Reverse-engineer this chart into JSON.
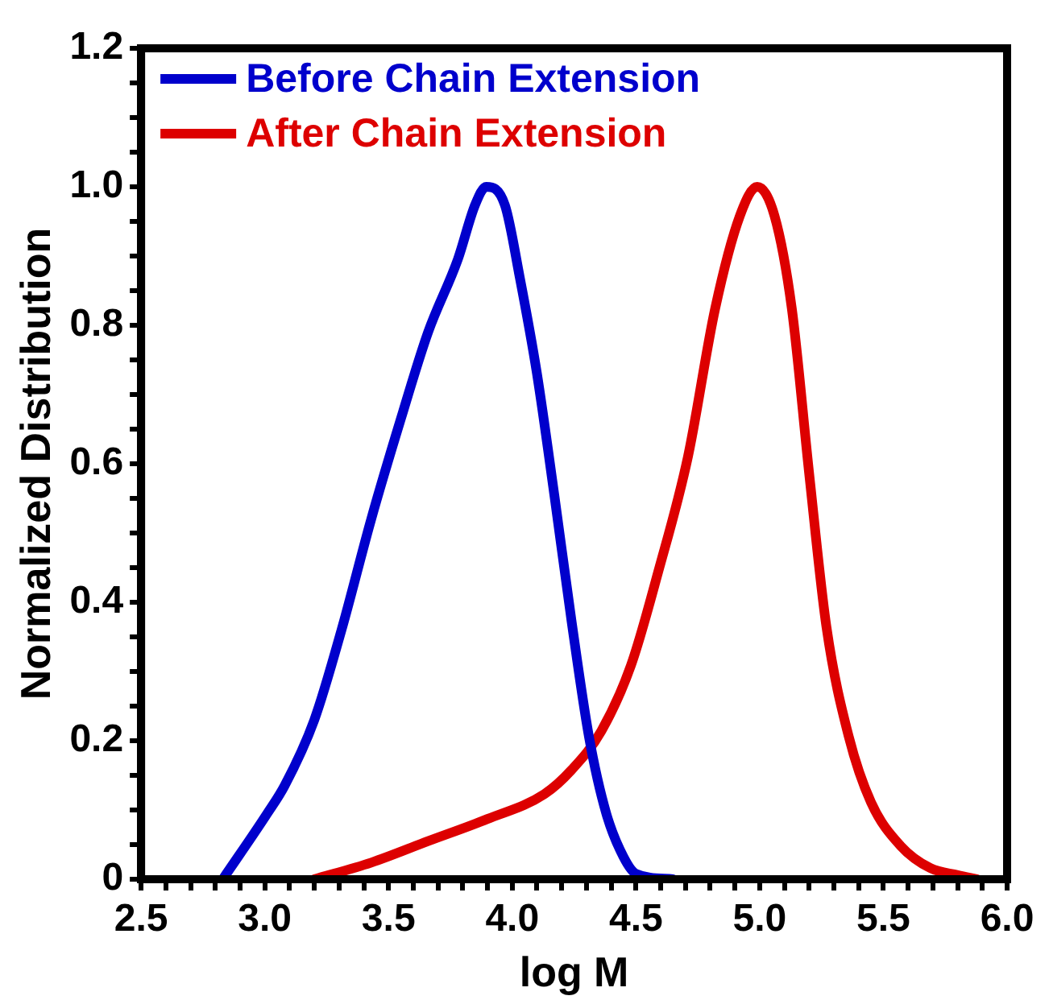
{
  "chart_data": {
    "type": "line",
    "xlabel": "log M",
    "ylabel": "Normalized Distribution",
    "xlim": [
      2.5,
      6.0
    ],
    "xticks": [
      {
        "value": 2.5,
        "label": "2.5"
      },
      {
        "value": 2.6,
        "label": null
      },
      {
        "value": 2.7,
        "label": null
      },
      {
        "value": 2.8,
        "label": null
      },
      {
        "value": 2.9,
        "label": null
      },
      {
        "value": 3.0,
        "label": "3.0"
      },
      {
        "value": 3.1,
        "label": null
      },
      {
        "value": 3.2,
        "label": null
      },
      {
        "value": 3.3,
        "label": null
      },
      {
        "value": 3.4,
        "label": null
      },
      {
        "value": 3.5,
        "label": "3.5"
      },
      {
        "value": 3.6,
        "label": null
      },
      {
        "value": 3.7,
        "label": null
      },
      {
        "value": 3.8,
        "label": null
      },
      {
        "value": 3.9,
        "label": null
      },
      {
        "value": 4.0,
        "label": "4.0"
      },
      {
        "value": 4.1,
        "label": null
      },
      {
        "value": 4.2,
        "label": null
      },
      {
        "value": 4.3,
        "label": null
      },
      {
        "value": 4.4,
        "label": null
      },
      {
        "value": 4.5,
        "label": "4.5"
      },
      {
        "value": 4.6,
        "label": null
      },
      {
        "value": 4.7,
        "label": null
      },
      {
        "value": 4.8,
        "label": null
      },
      {
        "value": 4.9,
        "label": null
      },
      {
        "value": 5.0,
        "label": "5.0"
      },
      {
        "value": 5.1,
        "label": null
      },
      {
        "value": 5.2,
        "label": null
      },
      {
        "value": 5.3,
        "label": null
      },
      {
        "value": 5.4,
        "label": null
      },
      {
        "value": 5.5,
        "label": "5.5"
      },
      {
        "value": 5.6,
        "label": null
      },
      {
        "value": 5.7,
        "label": null
      },
      {
        "value": 5.8,
        "label": null
      },
      {
        "value": 5.9,
        "label": null
      },
      {
        "value": 6.0,
        "label": "6.0"
      }
    ],
    "ylim": [
      0,
      1.2
    ],
    "yticks": [
      0,
      {
        "value": 0.05,
        "label": null
      },
      {
        "value": 0.1,
        "label": null
      },
      {
        "value": 0.15,
        "label": null
      },
      0.2,
      {
        "value": 0.25,
        "label": null
      },
      {
        "value": 0.3,
        "label": null
      },
      {
        "value": 0.35,
        "label": null
      },
      0.4,
      {
        "value": 0.45,
        "label": null
      },
      {
        "value": 0.5,
        "label": null
      },
      {
        "value": 0.55,
        "label": null
      },
      0.6,
      {
        "value": 0.65,
        "label": null
      },
      {
        "value": 0.7,
        "label": null
      },
      {
        "value": 0.75,
        "label": null
      },
      0.8,
      {
        "value": 0.85,
        "label": null
      },
      {
        "value": 0.9,
        "label": null
      },
      {
        "value": 0.95,
        "label": null
      },
      {
        "value": 1.0,
        "label": "1.0"
      },
      {
        "value": 1.05,
        "label": null
      },
      {
        "value": 1.1,
        "label": null
      },
      {
        "value": 1.15,
        "label": null
      },
      1.2
    ],
    "grid": false,
    "legend": "top left",
    "marker": "none",
    "line_style": "solid",
    "series": [
      {
        "name": "Before Chain Extension",
        "color": "#0000cc",
        "x": [
          2.83,
          3.01,
          3.08,
          3.2,
          3.31,
          3.43,
          3.55,
          3.66,
          3.78,
          3.85,
          3.895,
          3.97,
          4.03,
          4.1,
          4.17,
          4.24,
          4.31,
          4.38,
          4.45,
          4.5,
          4.65
        ],
        "values": [
          0,
          0.095,
          0.135,
          0.23,
          0.36,
          0.52,
          0.665,
          0.79,
          0.895,
          0.974,
          1.0,
          0.974,
          0.87,
          0.73,
          0.555,
          0.372,
          0.206,
          0.095,
          0.032,
          0.008,
          0
        ]
      },
      {
        "name": "After Chain Extension",
        "color": "#dd0000",
        "x": [
          3.2,
          3.43,
          3.66,
          3.9,
          4.13,
          4.24,
          4.36,
          4.48,
          4.59,
          4.71,
          4.82,
          4.92,
          4.99,
          5.06,
          5.13,
          5.2,
          5.27,
          5.36,
          5.45,
          5.57,
          5.69,
          5.8,
          5.88
        ],
        "values": [
          0,
          0.024,
          0.055,
          0.087,
          0.123,
          0.158,
          0.214,
          0.309,
          0.444,
          0.61,
          0.824,
          0.958,
          1.0,
          0.958,
          0.824,
          0.586,
          0.364,
          0.206,
          0.111,
          0.048,
          0.016,
          0.006,
          0
        ]
      }
    ]
  }
}
